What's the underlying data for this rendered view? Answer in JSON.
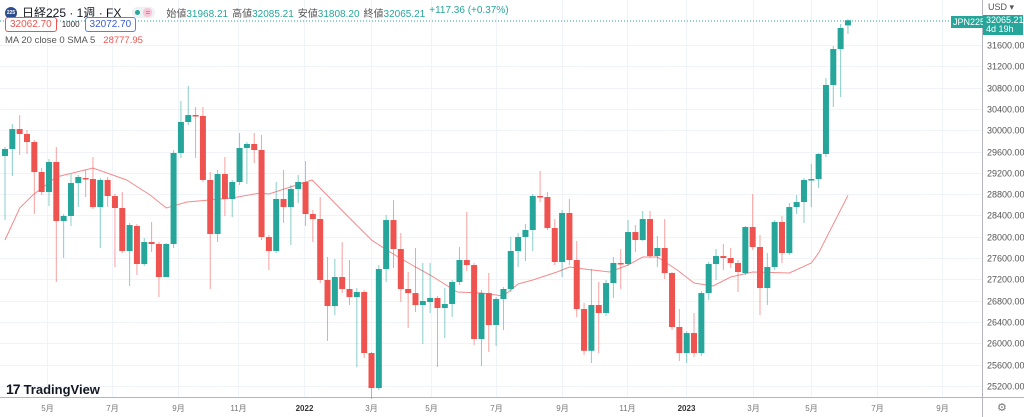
{
  "header": {
    "symbol_badge": "225",
    "title": "日経225 · 1週 · FX",
    "ohlc": [
      {
        "label": "始値",
        "value": "31968.21"
      },
      {
        "label": "高値",
        "value": "32085.21"
      },
      {
        "label": "安値",
        "value": "31808.20"
      },
      {
        "label": "終値",
        "value": "32065.21"
      }
    ],
    "change": "+117.36 (+0.37%)",
    "sell_price": "32062.70",
    "quantity": "1000",
    "buy_price": "32072.70",
    "indicator_label": "MA 20 close 0 SMA 5",
    "indicator_value": "28777.95"
  },
  "axis": {
    "currency": "USD ▾",
    "symbol_tag": "JPN225",
    "last_price": "32065.21",
    "countdown": "4d 19h"
  },
  "branding": {
    "logo_mark": "17",
    "name": "TradingView"
  },
  "settings_icon": "⚙",
  "colors": {
    "up": "#26a69a",
    "down": "#ef5350",
    "ma": "#f48a8d",
    "grid": "#f0f3fa"
  },
  "chart_data": {
    "type": "candlestick",
    "title": "日経225 · 1週 · FX",
    "ylim": [
      24900,
      32300
    ],
    "yticks": [
      25200,
      25600,
      26000,
      26400,
      26800,
      27200,
      27600,
      28000,
      28400,
      28800,
      29200,
      29600,
      30000,
      30400,
      30800,
      31200,
      31600
    ],
    "xticks": [
      {
        "label": "5月",
        "index": 6.7
      },
      {
        "label": "7月",
        "index": 15.6
      },
      {
        "label": "9月",
        "index": 24.6
      },
      {
        "label": "11月",
        "index": 32.8
      },
      {
        "label": "2022",
        "index": 41.8,
        "bold": true
      },
      {
        "label": "3月",
        "index": 50.9
      },
      {
        "label": "5月",
        "index": 59.1
      },
      {
        "label": "7月",
        "index": 68
      },
      {
        "label": "9月",
        "index": 77
      },
      {
        "label": "11月",
        "index": 85.9
      },
      {
        "label": "2023",
        "index": 93.9,
        "bold": true
      },
      {
        "label": "3月",
        "index": 103
      },
      {
        "label": "5月",
        "index": 111
      },
      {
        "label": "7月",
        "index": 120
      },
      {
        "label": "9月",
        "index": 128.8
      }
    ],
    "candles_ohlc": [
      [
        29515,
        29647,
        29684,
        28313
      ],
      [
        29647,
        30022,
        30116,
        29140
      ],
      [
        30022,
        29929,
        30285,
        29534
      ],
      [
        29929,
        29778,
        30004,
        29553
      ],
      [
        29778,
        29215,
        29816,
        28426
      ],
      [
        29215,
        28839,
        29290,
        28783
      ],
      [
        28839,
        29403,
        29459,
        28576
      ],
      [
        29403,
        28295,
        29684,
        27149
      ],
      [
        28295,
        28389,
        28426,
        27600
      ],
      [
        28389,
        29008,
        29177,
        28201
      ],
      [
        29008,
        29121,
        29159,
        28557
      ],
      [
        29102,
        29083,
        29252,
        28745
      ],
      [
        29083,
        28557,
        29497,
        28520
      ],
      [
        28557,
        29065,
        29102,
        27788
      ],
      [
        29065,
        28764,
        29121,
        28557
      ],
      [
        28764,
        28539,
        28802,
        27431
      ],
      [
        28539,
        27731,
        28839,
        27694
      ],
      [
        27731,
        28219,
        28257,
        27074
      ],
      [
        28201,
        27487,
        28238,
        27281
      ],
      [
        27487,
        27900,
        27975,
        27450
      ],
      [
        27900,
        27863,
        28276,
        27712
      ],
      [
        27863,
        27243,
        27900,
        26867
      ],
      [
        27243,
        27863,
        27881,
        27600
      ],
      [
        27863,
        29572,
        29628,
        27788
      ],
      [
        29572,
        30154,
        30548,
        29478
      ],
      [
        30154,
        30285,
        30830,
        30097
      ],
      [
        30285,
        30267,
        30436,
        29478
      ],
      [
        30267,
        29065,
        30436,
        29027
      ],
      [
        29065,
        28051,
        29215,
        27018
      ],
      [
        28051,
        29177,
        29252,
        27900
      ],
      [
        29177,
        28708,
        29497,
        28389
      ],
      [
        28708,
        29027,
        29065,
        28370
      ],
      [
        29027,
        29666,
        29947,
        28971
      ],
      [
        29666,
        29741,
        29778,
        28989
      ],
      [
        29741,
        29628,
        29947,
        29384
      ],
      [
        29628,
        27994,
        29910,
        27938
      ],
      [
        27994,
        27731,
        28032,
        27374
      ],
      [
        27731,
        28708,
        29027,
        27694
      ],
      [
        28708,
        28557,
        29252,
        28257
      ],
      [
        28557,
        28896,
        28971,
        27844
      ],
      [
        28896,
        29027,
        29159,
        28633
      ],
      [
        29027,
        28426,
        29421,
        28201
      ],
      [
        28426,
        28332,
        28501,
        27900
      ],
      [
        28332,
        27187,
        28745,
        27130
      ],
      [
        27187,
        26698,
        27619,
        26041
      ],
      [
        26698,
        27243,
        27581,
        26529
      ],
      [
        27243,
        27018,
        27900,
        26942
      ],
      [
        27018,
        26867,
        27562,
        26717
      ],
      [
        26867,
        26961,
        27036,
        25553
      ],
      [
        26961,
        25816,
        26999,
        25722
      ],
      [
        25816,
        25158,
        25835,
        24952
      ],
      [
        25158,
        27393,
        27468,
        25121
      ],
      [
        27393,
        28313,
        28408,
        27149
      ],
      [
        28313,
        27769,
        28689,
        27412
      ],
      [
        27769,
        27018,
        28069,
        26773
      ],
      [
        27018,
        26942,
        27337,
        26285
      ],
      [
        26942,
        26717,
        27788,
        26586
      ],
      [
        26717,
        26792,
        27506,
        25985
      ],
      [
        26773,
        26849,
        27506,
        26567
      ],
      [
        26849,
        26661,
        26886,
        25553
      ],
      [
        26661,
        26736,
        27036,
        26097
      ],
      [
        26736,
        27149,
        27187,
        26492
      ],
      [
        27149,
        27562,
        27806,
        27093
      ],
      [
        27562,
        27468,
        28464,
        27356
      ],
      [
        27468,
        26079,
        27506,
        25966
      ],
      [
        26079,
        26942,
        26999,
        25571
      ],
      [
        26942,
        26342,
        27318,
        25834
      ],
      [
        26342,
        26830,
        26867,
        25947
      ],
      [
        26830,
        27018,
        27055,
        26248
      ],
      [
        27018,
        27731,
        27994,
        26961
      ],
      [
        27731,
        27994,
        28069,
        27431
      ],
      [
        27994,
        28126,
        28238,
        27543
      ],
      [
        28126,
        28764,
        28802,
        27731
      ],
      [
        28764,
        28745,
        29234,
        28651
      ],
      [
        28745,
        28163,
        28839,
        28126
      ],
      [
        28163,
        27525,
        28332,
        27468
      ],
      [
        27525,
        28445,
        28501,
        27243
      ],
      [
        28445,
        27562,
        28708,
        27468
      ],
      [
        27562,
        26642,
        27919,
        26492
      ],
      [
        26642,
        25857,
        26755,
        25778
      ],
      [
        25857,
        26717,
        27393,
        25628
      ],
      [
        26717,
        26567,
        27149,
        25816
      ],
      [
        26567,
        27130,
        27187,
        26511
      ],
      [
        27130,
        27506,
        27619,
        26849
      ],
      [
        27506,
        27487,
        27769,
        27018
      ],
      [
        27487,
        28088,
        28313,
        27450
      ],
      [
        28088,
        27938,
        28220,
        27712
      ],
      [
        27938,
        28332,
        28483,
        27919
      ],
      [
        28332,
        27637,
        28483,
        27600
      ],
      [
        27637,
        27788,
        28013,
        27431
      ],
      [
        27788,
        27318,
        28332,
        27205
      ],
      [
        27318,
        26304,
        27337,
        26248
      ],
      [
        26304,
        25816,
        26642,
        25666
      ],
      [
        25816,
        26191,
        26228,
        25628
      ],
      [
        26191,
        25816,
        26567,
        25741
      ],
      [
        25816,
        26942,
        26980,
        25759
      ],
      [
        26942,
        27487,
        27525,
        26811
      ],
      [
        27487,
        27637,
        27769,
        27187
      ],
      [
        27637,
        27600,
        27863,
        27374
      ],
      [
        27600,
        27506,
        27788,
        27412
      ],
      [
        27506,
        27337,
        27562,
        26961
      ],
      [
        27318,
        28182,
        28201,
        27281
      ],
      [
        28182,
        27806,
        28802,
        27750
      ],
      [
        27806,
        27036,
        28032,
        26529
      ],
      [
        27036,
        27431,
        27694,
        26717
      ],
      [
        27431,
        28276,
        28313,
        27374
      ],
      [
        28276,
        27694,
        28389,
        27506
      ],
      [
        27694,
        28557,
        28633,
        27656
      ],
      [
        28557,
        28651,
        28783,
        28426
      ],
      [
        28651,
        29065,
        29102,
        28257
      ],
      [
        29065,
        29083,
        29365,
        28557
      ],
      [
        29083,
        29553,
        29572,
        28914
      ],
      [
        29553,
        30849,
        30980,
        29497
      ],
      [
        30849,
        31525,
        31581,
        30436
      ],
      [
        31525,
        31919,
        31994,
        30623
      ],
      [
        31968.21,
        32065.21,
        32085.21,
        31808.2
      ]
    ],
    "ma_series": {
      "name": "MA 20 close 0 SMA 5",
      "points": [
        [
          1,
          27938
        ],
        [
          3,
          28539
        ],
        [
          4.8,
          28783
        ],
        [
          8,
          29121
        ],
        [
          13,
          29290
        ],
        [
          17.6,
          29065
        ],
        [
          20.8,
          28783
        ],
        [
          23,
          28539
        ],
        [
          25.8,
          28651
        ],
        [
          32,
          28727
        ],
        [
          35.8,
          28820
        ],
        [
          37,
          28802
        ],
        [
          42.9,
          29065
        ],
        [
          48,
          28351
        ],
        [
          51,
          27938
        ],
        [
          53.5,
          27712
        ],
        [
          57,
          27431
        ],
        [
          59,
          27281
        ],
        [
          62.7,
          26961
        ],
        [
          66,
          26942
        ],
        [
          69,
          26886
        ],
        [
          71,
          27112
        ],
        [
          73,
          27187
        ],
        [
          76.3,
          27337
        ],
        [
          78,
          27431
        ],
        [
          80,
          27393
        ],
        [
          83.5,
          27337
        ],
        [
          86,
          27468
        ],
        [
          88,
          27619
        ],
        [
          90,
          27619
        ],
        [
          92.7,
          27374
        ],
        [
          95,
          27130
        ],
        [
          97.6,
          27074
        ],
        [
          100,
          27243
        ],
        [
          103,
          27337
        ],
        [
          108,
          27318
        ],
        [
          111,
          27506
        ],
        [
          112,
          27694
        ],
        [
          116,
          28777.95
        ]
      ]
    }
  }
}
